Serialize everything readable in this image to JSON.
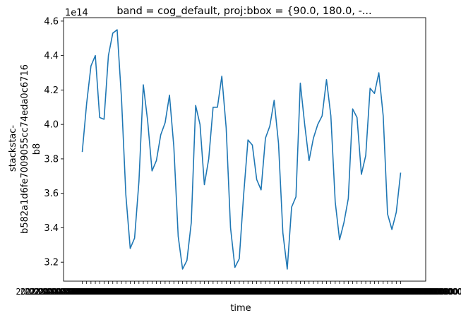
{
  "chart_data": {
    "type": "line",
    "title": "band = cog_default, proj:bbox = {90.0, 180.0, -...",
    "xlabel": "time",
    "ylabel_lines": [
      "stackstac-",
      "b582a1d6fe7009055cc74eda0c6716",
      "b8"
    ],
    "y_offset_label": "1e14",
    "y_scale": 100000000000000.0,
    "ylim": [
      3.09,
      4.62
    ],
    "yticks": [
      3.2,
      3.4,
      3.6,
      3.8,
      4.0,
      4.2,
      4.4,
      4.6
    ],
    "ytick_labels": [
      "3.2",
      "3.4",
      "3.6",
      "3.8",
      "4.0",
      "4.2",
      "4.4",
      "4.6"
    ],
    "x_tick_label_text": "2022-00-00T00:00:00.000000000",
    "grid": false,
    "color": "#1f77b4",
    "series": [
      {
        "values": [
          3.84,
          4.12,
          4.34,
          4.4,
          4.04,
          4.03,
          4.4,
          4.53,
          4.55,
          4.15,
          3.59,
          3.28,
          3.34,
          3.67,
          4.23,
          4.02,
          3.73,
          3.79,
          3.94,
          4.01,
          4.17,
          3.87,
          3.35,
          3.16,
          3.21,
          3.43,
          4.11,
          4.0,
          3.65,
          3.8,
          4.1,
          4.1,
          4.28,
          3.98,
          3.4,
          3.17,
          3.22,
          3.59,
          3.91,
          3.88,
          3.68,
          3.62,
          3.92,
          3.99,
          4.14,
          3.89,
          3.37,
          3.16,
          3.52,
          3.58,
          4.24,
          4.0,
          3.79,
          3.92,
          4.0,
          4.05,
          4.26,
          4.05,
          3.55,
          3.33,
          3.43,
          3.57,
          4.09,
          4.04,
          3.71,
          3.82,
          4.21,
          4.18,
          4.3,
          4.05,
          3.48,
          3.39,
          3.49,
          3.72
        ]
      }
    ]
  }
}
